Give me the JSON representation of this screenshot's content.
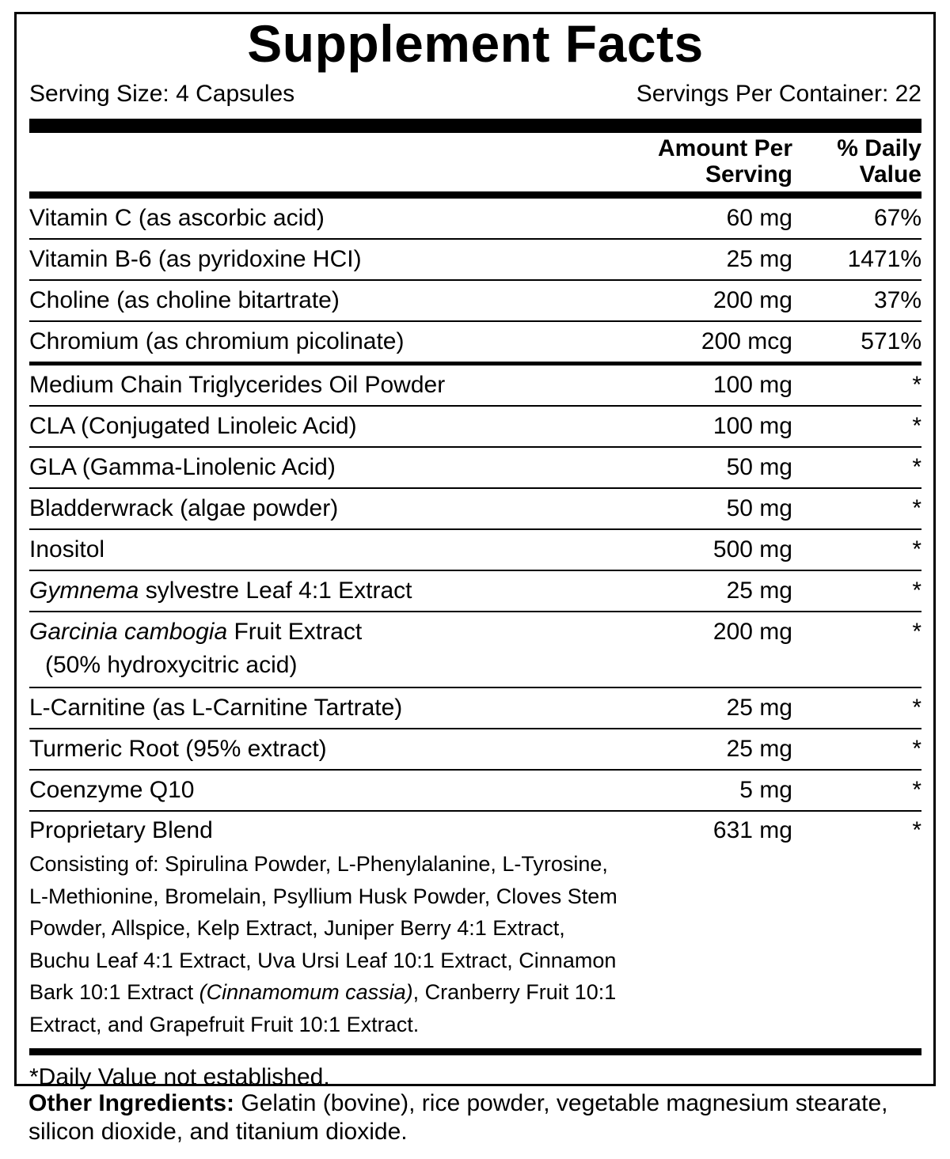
{
  "title": "Supplement Facts",
  "serving_size": "Serving Size: 4 Capsules",
  "servings_per_container": "Servings Per Container: 22",
  "header": {
    "amount_line1": "Amount Per",
    "amount_line2": "Serving",
    "dv_line1": "% Daily",
    "dv_line2": "Value"
  },
  "vitamins": [
    {
      "name": "Vitamin C (as ascorbic acid)",
      "amount": "60 mg",
      "dv": "67%"
    },
    {
      "name": "Vitamin B-6 (as pyridoxine HCI)",
      "amount": "25 mg",
      "dv": "1471%"
    },
    {
      "name": "Choline (as choline bitartrate)",
      "amount": "200 mg",
      "dv": "37%"
    },
    {
      "name": "Chromium (as chromium picolinate)",
      "amount": "200 mcg",
      "dv": "571%"
    }
  ],
  "ingredients": [
    {
      "name_italic": "",
      "name": "Medium Chain Triglycerides Oil Powder",
      "amount": "100 mg",
      "dv": "*"
    },
    {
      "name_italic": "",
      "name": "CLA (Conjugated Linoleic Acid)",
      "amount": "100 mg",
      "dv": "*"
    },
    {
      "name_italic": "",
      "name": "GLA (Gamma-Linolenic Acid)",
      "amount": "50 mg",
      "dv": "*"
    },
    {
      "name_italic": "",
      "name": "Bladderwrack (algae powder)",
      "amount": "50 mg",
      "dv": "*"
    },
    {
      "name_italic": "",
      "name": "Inositol",
      "amount": "500 mg",
      "dv": "*"
    },
    {
      "name_italic": "Gymnema",
      "name": " sylvestre Leaf 4:1 Extract",
      "amount": "25 mg",
      "dv": "*"
    },
    {
      "name_italic": "Garcinia cambogia",
      "name": " Fruit Extract",
      "sub": "(50% hydroxycitric acid)",
      "amount": "200 mg",
      "dv": "*"
    },
    {
      "name_italic": "",
      "name": "L-Carnitine (as L-Carnitine Tartrate)",
      "amount": "25 mg",
      "dv": "*"
    },
    {
      "name_italic": "",
      "name": "Turmeric Root (95% extract)",
      "amount": "25 mg",
      "dv": "*"
    },
    {
      "name_italic": "",
      "name": "Coenzyme Q10",
      "amount": "5 mg",
      "dv": "*"
    }
  ],
  "blend": {
    "name": "Proprietary Blend",
    "amount": "631 mg",
    "dv": "*",
    "lines": [
      [
        {
          "text": "Consisting of: Spirulina Powder, L-Phenylalanine, L-Tyrosine,",
          "italic": false
        }
      ],
      [
        {
          "text": "L-Methionine, Bromelain, Psyllium Husk Powder, Cloves Stem",
          "italic": false
        }
      ],
      [
        {
          "text": "Powder, Allspice, Kelp Extract, Juniper Berry 4:1 Extract,",
          "italic": false
        }
      ],
      [
        {
          "text": "Buchu Leaf 4:1 Extract, Uva Ursi Leaf 10:1 Extract, Cinnamon",
          "italic": false
        }
      ],
      [
        {
          "text": "Bark 10:1 Extract ",
          "italic": false
        },
        {
          "text": "(Cinnamomum cassia)",
          "italic": true
        },
        {
          "text": ", Cranberry Fruit 10:1",
          "italic": false
        }
      ],
      [
        {
          "text": "Extract, and Grapefruit Fruit 10:1 Extract.",
          "italic": false
        }
      ]
    ]
  },
  "footnote": "*Daily Value not established.",
  "other_ingredients": {
    "label": "Other Ingredients:",
    "text": " Gelatin (bovine), rice powder, vegetable magnesium stearate, silicon dioxide, and titanium dioxide."
  }
}
